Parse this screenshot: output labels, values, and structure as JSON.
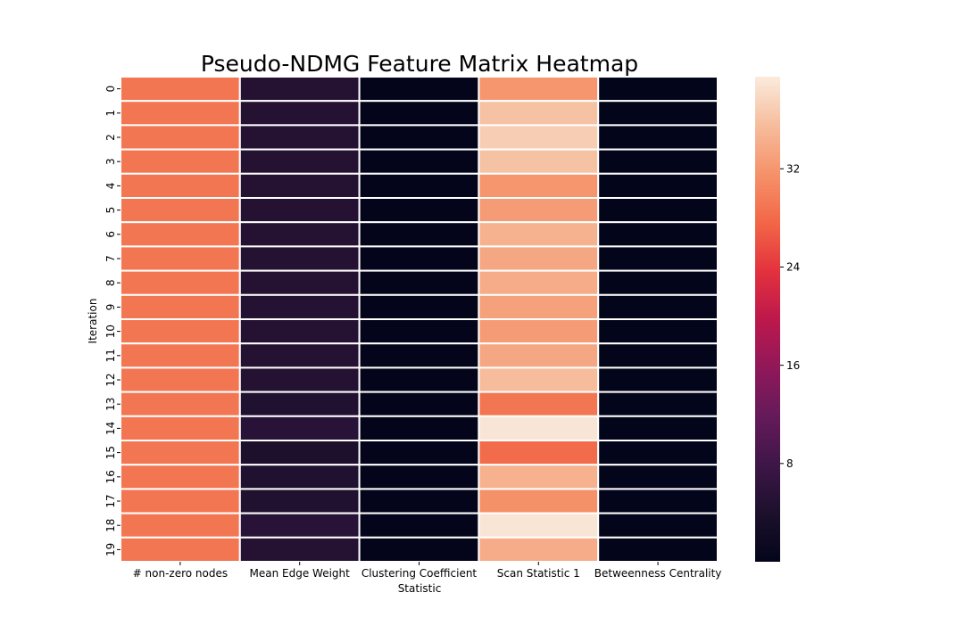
{
  "chart_data": {
    "type": "heatmap",
    "title": "Pseudo-NDMG Feature Matrix Heatmap",
    "xlabel": "Statistic",
    "ylabel": "Iteration",
    "columns": [
      "# non-zero nodes",
      "Mean Edge Weight",
      "Clustering Coefficient",
      "Scan Statistic 1",
      "Betweenness Centrality"
    ],
    "rows": [
      "0",
      "1",
      "2",
      "3",
      "4",
      "5",
      "6",
      "7",
      "8",
      "9",
      "10",
      "11",
      "12",
      "13",
      "14",
      "15",
      "16",
      "17",
      "18",
      "19"
    ],
    "values": [
      [
        29,
        5,
        0.1,
        32,
        0.02
      ],
      [
        29,
        5,
        0.1,
        36,
        0.02
      ],
      [
        29,
        5,
        0.1,
        37,
        0.02
      ],
      [
        29,
        5,
        0.1,
        36,
        0.02
      ],
      [
        29,
        5,
        0.1,
        32,
        0.02
      ],
      [
        29,
        5,
        0.1,
        32.5,
        0.02
      ],
      [
        29,
        5,
        0.1,
        34.5,
        0.02
      ],
      [
        29,
        5,
        0.1,
        33.5,
        0.02
      ],
      [
        29,
        5,
        0.1,
        34,
        0.02
      ],
      [
        29,
        5,
        0.1,
        33,
        0.02
      ],
      [
        29,
        5,
        0.1,
        32.5,
        0.02
      ],
      [
        29,
        5,
        0.1,
        33.5,
        0.02
      ],
      [
        29,
        5,
        0.1,
        35.5,
        0.02
      ],
      [
        29,
        4.5,
        0.1,
        29,
        0.02
      ],
      [
        29,
        5.5,
        0.1,
        39,
        0.02
      ],
      [
        29,
        4,
        0.1,
        28,
        0.02
      ],
      [
        29,
        4.5,
        0.1,
        34.5,
        0.02
      ],
      [
        29,
        4.5,
        0.1,
        31.5,
        0.02
      ],
      [
        29,
        5.5,
        0.1,
        39,
        0.02
      ],
      [
        29,
        5,
        0.1,
        34,
        0.02
      ]
    ],
    "colorscale": "rocket",
    "vmin": 0,
    "vmax": 39.5,
    "colorbar_ticks": [
      8,
      16,
      24,
      32
    ],
    "colors": {
      "cell_border": "#ffffff",
      "tick": "#000000"
    }
  }
}
